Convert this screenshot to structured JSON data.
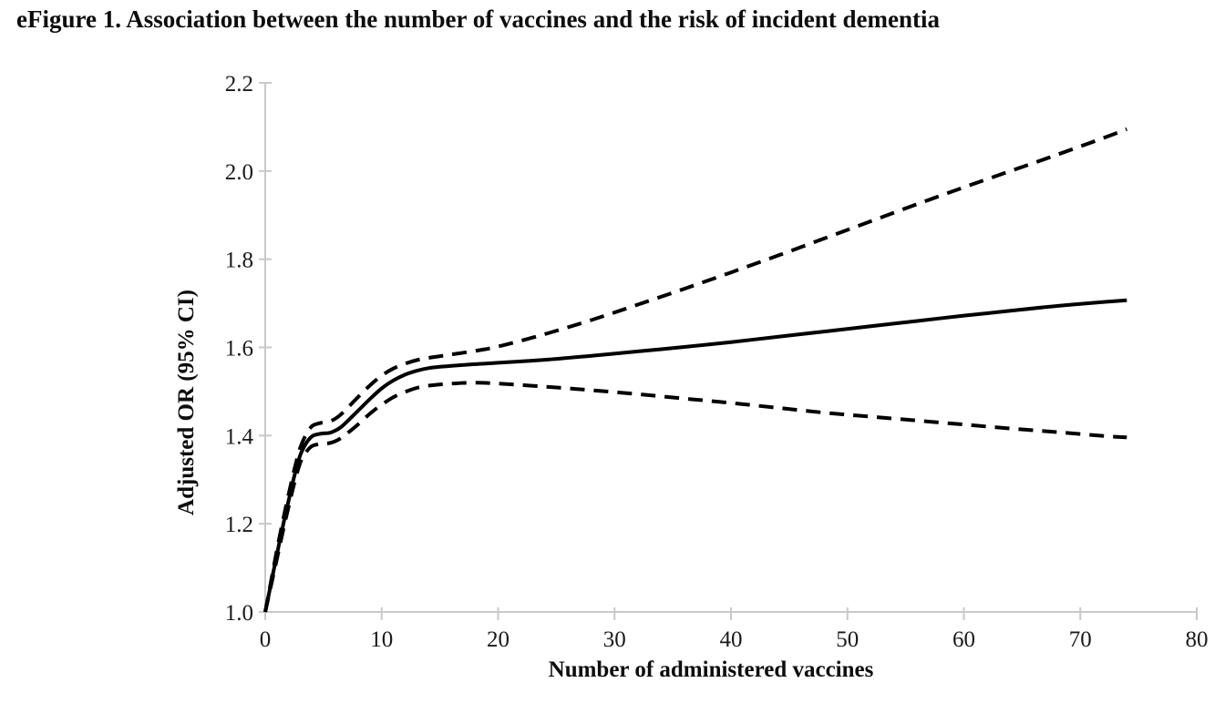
{
  "figure": {
    "title": "eFigure 1. Association between the number of vaccines and the risk of incident dementia"
  },
  "chart_data": {
    "type": "line",
    "title": "eFigure 1. Association between the number of vaccines and the risk of incident dementia",
    "xlabel": "Number of administered vaccines",
    "ylabel": "Adjusted OR (95% CI)",
    "xlim": [
      0,
      80
    ],
    "ylim": [
      1.0,
      2.2
    ],
    "x_ticks": [
      "0",
      "10",
      "20",
      "30",
      "40",
      "50",
      "60",
      "70",
      "80"
    ],
    "y_ticks": [
      "1.0",
      "1.2",
      "1.4",
      "1.6",
      "1.8",
      "2.0",
      "2.2"
    ],
    "grid": false,
    "legend_position": "none",
    "x": [
      0,
      0.5,
      1,
      1.5,
      2,
      2.5,
      3,
      3.5,
      4,
      4.5,
      5,
      5.5,
      6,
      6.5,
      7,
      8,
      9,
      10,
      11,
      12,
      13,
      14,
      15,
      16,
      18,
      20,
      24,
      28,
      32,
      36,
      40,
      44,
      48,
      52,
      56,
      60,
      64,
      68,
      72,
      74
    ],
    "series": [
      {
        "name": "Adjusted OR (point estimate)",
        "line_style": "solid",
        "color": "#000000",
        "values": [
          1.0,
          1.065,
          1.13,
          1.193,
          1.252,
          1.308,
          1.355,
          1.382,
          1.398,
          1.403,
          1.405,
          1.406,
          1.411,
          1.419,
          1.431,
          1.457,
          1.483,
          1.507,
          1.525,
          1.538,
          1.547,
          1.553,
          1.556,
          1.558,
          1.562,
          1.565,
          1.572,
          1.581,
          1.591,
          1.601,
          1.612,
          1.624,
          1.636,
          1.648,
          1.66,
          1.672,
          1.683,
          1.694,
          1.703,
          1.707
        ]
      },
      {
        "name": "95% CI upper bound",
        "line_style": "dashed",
        "color": "#000000",
        "values": [
          1.0,
          1.07,
          1.14,
          1.205,
          1.266,
          1.323,
          1.372,
          1.402,
          1.421,
          1.427,
          1.43,
          1.432,
          1.438,
          1.448,
          1.461,
          1.488,
          1.514,
          1.536,
          1.552,
          1.563,
          1.571,
          1.576,
          1.58,
          1.584,
          1.592,
          1.602,
          1.63,
          1.662,
          1.697,
          1.733,
          1.77,
          1.808,
          1.847,
          1.886,
          1.925,
          1.963,
          2.0,
          2.037,
          2.075,
          2.095
        ]
      },
      {
        "name": "95% CI lower bound",
        "line_style": "dashed",
        "color": "#000000",
        "values": [
          1.0,
          1.06,
          1.12,
          1.181,
          1.238,
          1.292,
          1.338,
          1.362,
          1.376,
          1.38,
          1.382,
          1.383,
          1.387,
          1.394,
          1.404,
          1.426,
          1.45,
          1.47,
          1.487,
          1.499,
          1.508,
          1.513,
          1.516,
          1.518,
          1.52,
          1.518,
          1.511,
          1.503,
          1.494,
          1.484,
          1.474,
          1.463,
          1.452,
          1.443,
          1.434,
          1.425,
          1.416,
          1.408,
          1.399,
          1.396
        ]
      }
    ],
    "colors": {
      "curve": "#000000",
      "axis": "#c9c9c9",
      "tick_text": "#1a1a1a"
    }
  }
}
